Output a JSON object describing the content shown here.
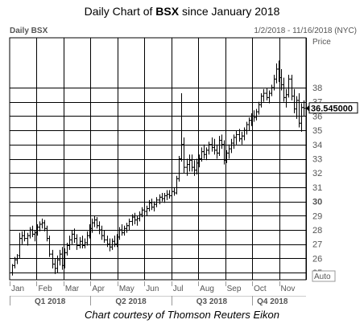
{
  "title": {
    "prefix": "Daily Chart of ",
    "ticker": "BSX",
    "suffix": " since January 2018"
  },
  "caption": "Chart courtesy of Thomson Reuters Eikon",
  "chart_data": {
    "type": "ohlc",
    "panel_label": "Daily BSX",
    "date_range": "1/2/2018 - 11/16/2018 (NYC)",
    "ylabel": "Price",
    "auto_label": "Auto",
    "ylim": [
      24.5,
      41.5
    ],
    "y_ticks": [
      25,
      26,
      27,
      28,
      29,
      30,
      31,
      32,
      33,
      34,
      35,
      36,
      37,
      38
    ],
    "bold_y_ticks": [
      30
    ],
    "last_price": "36.545000",
    "last_price_value": 36.545,
    "month_labels": [
      "Jan",
      "Feb",
      "Mar",
      "Apr",
      "May",
      "Jun",
      "Jul",
      "Aug",
      "Sep",
      "Oct",
      "Nov"
    ],
    "quarter_labels": [
      "Q1 2018",
      "Q2 2018",
      "Q3 2018",
      "Q4 2018"
    ],
    "colors": {
      "bars": "#000000",
      "grid": "#000000",
      "label": "#555555",
      "price_label_bg": "#ffffff"
    },
    "bars": [
      {
        "o": 25.0,
        "h": 25.6,
        "l": 24.8,
        "c": 25.5
      },
      {
        "o": 25.5,
        "h": 26.1,
        "l": 25.3,
        "c": 25.9
      },
      {
        "o": 25.9,
        "h": 26.3,
        "l": 25.6,
        "c": 26.0
      },
      {
        "o": 26.2,
        "h": 27.8,
        "l": 26.0,
        "c": 27.4
      },
      {
        "o": 27.4,
        "h": 27.9,
        "l": 27.0,
        "c": 27.6
      },
      {
        "o": 27.6,
        "h": 28.0,
        "l": 27.2,
        "c": 27.4
      },
      {
        "o": 27.4,
        "h": 27.8,
        "l": 26.9,
        "c": 27.6
      },
      {
        "o": 27.6,
        "h": 28.2,
        "l": 27.4,
        "c": 28.0
      },
      {
        "o": 28.0,
        "h": 28.3,
        "l": 27.5,
        "c": 27.7
      },
      {
        "o": 27.7,
        "h": 28.0,
        "l": 27.2,
        "c": 27.8
      },
      {
        "o": 27.8,
        "h": 28.4,
        "l": 27.6,
        "c": 28.2
      },
      {
        "o": 28.2,
        "h": 28.6,
        "l": 27.9,
        "c": 28.4
      },
      {
        "o": 28.4,
        "h": 28.8,
        "l": 28.1,
        "c": 28.5
      },
      {
        "o": 28.5,
        "h": 28.7,
        "l": 27.9,
        "c": 28.1
      },
      {
        "o": 28.1,
        "h": 28.3,
        "l": 27.2,
        "c": 27.4
      },
      {
        "o": 27.4,
        "h": 27.6,
        "l": 26.1,
        "c": 26.3
      },
      {
        "o": 26.3,
        "h": 26.6,
        "l": 25.3,
        "c": 25.6
      },
      {
        "o": 25.6,
        "h": 26.0,
        "l": 24.9,
        "c": 25.3
      },
      {
        "o": 25.3,
        "h": 26.2,
        "l": 25.0,
        "c": 25.9
      },
      {
        "o": 25.9,
        "h": 26.6,
        "l": 25.5,
        "c": 26.3
      },
      {
        "o": 26.3,
        "h": 26.8,
        "l": 25.2,
        "c": 25.5
      },
      {
        "o": 25.5,
        "h": 26.7,
        "l": 25.3,
        "c": 26.4
      },
      {
        "o": 26.4,
        "h": 27.1,
        "l": 26.2,
        "c": 26.9
      },
      {
        "o": 26.9,
        "h": 27.6,
        "l": 26.6,
        "c": 27.3
      },
      {
        "o": 27.3,
        "h": 28.0,
        "l": 27.0,
        "c": 27.7
      },
      {
        "o": 27.7,
        "h": 28.1,
        "l": 27.1,
        "c": 27.4
      },
      {
        "o": 27.4,
        "h": 27.7,
        "l": 26.6,
        "c": 26.9
      },
      {
        "o": 26.9,
        "h": 27.5,
        "l": 26.7,
        "c": 27.2
      },
      {
        "o": 27.2,
        "h": 27.6,
        "l": 26.7,
        "c": 26.9
      },
      {
        "o": 26.9,
        "h": 27.4,
        "l": 26.7,
        "c": 27.1
      },
      {
        "o": 27.1,
        "h": 27.9,
        "l": 26.9,
        "c": 27.6
      },
      {
        "o": 27.6,
        "h": 28.4,
        "l": 27.4,
        "c": 28.1
      },
      {
        "o": 28.1,
        "h": 28.8,
        "l": 27.8,
        "c": 28.5
      },
      {
        "o": 28.5,
        "h": 29.0,
        "l": 28.2,
        "c": 28.7
      },
      {
        "o": 28.7,
        "h": 28.9,
        "l": 28.1,
        "c": 28.3
      },
      {
        "o": 28.3,
        "h": 28.6,
        "l": 27.7,
        "c": 28.0
      },
      {
        "o": 28.0,
        "h": 28.3,
        "l": 27.3,
        "c": 27.6
      },
      {
        "o": 27.6,
        "h": 28.0,
        "l": 27.1,
        "c": 27.3
      },
      {
        "o": 27.3,
        "h": 27.6,
        "l": 26.8,
        "c": 27.0
      },
      {
        "o": 27.0,
        "h": 27.4,
        "l": 26.5,
        "c": 26.8
      },
      {
        "o": 26.8,
        "h": 27.4,
        "l": 26.6,
        "c": 27.2
      },
      {
        "o": 27.2,
        "h": 27.6,
        "l": 26.8,
        "c": 27.0
      },
      {
        "o": 27.0,
        "h": 27.7,
        "l": 26.8,
        "c": 27.5
      },
      {
        "o": 27.5,
        "h": 28.2,
        "l": 27.3,
        "c": 28.0
      },
      {
        "o": 28.0,
        "h": 28.4,
        "l": 27.6,
        "c": 27.8
      },
      {
        "o": 27.8,
        "h": 28.3,
        "l": 27.6,
        "c": 28.1
      },
      {
        "o": 28.1,
        "h": 28.5,
        "l": 27.8,
        "c": 28.3
      },
      {
        "o": 28.3,
        "h": 28.8,
        "l": 28.0,
        "c": 28.6
      },
      {
        "o": 28.6,
        "h": 29.1,
        "l": 28.3,
        "c": 28.9
      },
      {
        "o": 28.9,
        "h": 29.2,
        "l": 28.4,
        "c": 28.7
      },
      {
        "o": 28.7,
        "h": 29.0,
        "l": 28.3,
        "c": 28.8
      },
      {
        "o": 28.8,
        "h": 29.3,
        "l": 28.6,
        "c": 29.1
      },
      {
        "o": 29.1,
        "h": 29.6,
        "l": 28.9,
        "c": 29.4
      },
      {
        "o": 29.4,
        "h": 29.8,
        "l": 29.0,
        "c": 29.3
      },
      {
        "o": 29.3,
        "h": 29.7,
        "l": 29.0,
        "c": 29.5
      },
      {
        "o": 29.5,
        "h": 30.1,
        "l": 29.3,
        "c": 29.9
      },
      {
        "o": 29.9,
        "h": 30.2,
        "l": 29.4,
        "c": 29.6
      },
      {
        "o": 29.6,
        "h": 30.0,
        "l": 29.3,
        "c": 29.8
      },
      {
        "o": 29.8,
        "h": 30.3,
        "l": 29.6,
        "c": 30.1
      },
      {
        "o": 30.1,
        "h": 30.5,
        "l": 29.8,
        "c": 30.3
      },
      {
        "o": 30.3,
        "h": 30.6,
        "l": 30.0,
        "c": 30.2
      },
      {
        "o": 30.2,
        "h": 30.6,
        "l": 29.9,
        "c": 30.4
      },
      {
        "o": 30.4,
        "h": 30.8,
        "l": 30.1,
        "c": 30.5
      },
      {
        "o": 30.5,
        "h": 30.8,
        "l": 30.2,
        "c": 30.4
      },
      {
        "o": 30.4,
        "h": 30.9,
        "l": 30.2,
        "c": 30.7
      },
      {
        "o": 30.7,
        "h": 31.0,
        "l": 30.4,
        "c": 30.6
      },
      {
        "o": 30.6,
        "h": 31.8,
        "l": 30.5,
        "c": 31.6
      },
      {
        "o": 31.6,
        "h": 33.2,
        "l": 31.4,
        "c": 33.0
      },
      {
        "o": 33.0,
        "h": 37.6,
        "l": 32.8,
        "c": 34.0
      },
      {
        "o": 34.0,
        "h": 34.5,
        "l": 32.0,
        "c": 32.4
      },
      {
        "o": 32.4,
        "h": 33.0,
        "l": 31.8,
        "c": 32.6
      },
      {
        "o": 32.6,
        "h": 33.3,
        "l": 32.1,
        "c": 32.9
      },
      {
        "o": 32.9,
        "h": 33.3,
        "l": 32.1,
        "c": 32.4
      },
      {
        "o": 32.4,
        "h": 32.9,
        "l": 31.8,
        "c": 32.2
      },
      {
        "o": 32.2,
        "h": 33.0,
        "l": 31.9,
        "c": 32.7
      },
      {
        "o": 32.7,
        "h": 33.3,
        "l": 32.4,
        "c": 33.0
      },
      {
        "o": 33.0,
        "h": 33.8,
        "l": 32.8,
        "c": 33.5
      },
      {
        "o": 33.5,
        "h": 34.0,
        "l": 33.0,
        "c": 33.3
      },
      {
        "o": 33.3,
        "h": 33.8,
        "l": 32.9,
        "c": 33.6
      },
      {
        "o": 33.6,
        "h": 34.2,
        "l": 33.3,
        "c": 34.0
      },
      {
        "o": 34.0,
        "h": 34.5,
        "l": 33.5,
        "c": 33.8
      },
      {
        "o": 33.8,
        "h": 34.4,
        "l": 33.3,
        "c": 33.6
      },
      {
        "o": 33.6,
        "h": 34.0,
        "l": 33.0,
        "c": 33.4
      },
      {
        "o": 33.4,
        "h": 34.6,
        "l": 33.2,
        "c": 34.3
      },
      {
        "o": 34.3,
        "h": 34.7,
        "l": 33.7,
        "c": 34.0
      },
      {
        "o": 34.0,
        "h": 34.3,
        "l": 32.6,
        "c": 32.9
      },
      {
        "o": 32.9,
        "h": 33.6,
        "l": 32.7,
        "c": 33.4
      },
      {
        "o": 33.4,
        "h": 34.0,
        "l": 33.0,
        "c": 33.7
      },
      {
        "o": 33.7,
        "h": 34.4,
        "l": 33.4,
        "c": 34.1
      },
      {
        "o": 34.1,
        "h": 34.7,
        "l": 33.7,
        "c": 34.5
      },
      {
        "o": 34.5,
        "h": 35.0,
        "l": 34.0,
        "c": 34.7
      },
      {
        "o": 34.7,
        "h": 35.1,
        "l": 34.2,
        "c": 34.4
      },
      {
        "o": 34.4,
        "h": 34.9,
        "l": 34.0,
        "c": 34.6
      },
      {
        "o": 34.6,
        "h": 35.2,
        "l": 34.3,
        "c": 35.0
      },
      {
        "o": 35.0,
        "h": 35.6,
        "l": 34.7,
        "c": 35.4
      },
      {
        "o": 35.4,
        "h": 35.9,
        "l": 35.0,
        "c": 35.7
      },
      {
        "o": 35.7,
        "h": 36.2,
        "l": 35.3,
        "c": 36.0
      },
      {
        "o": 36.0,
        "h": 36.4,
        "l": 35.6,
        "c": 35.9
      },
      {
        "o": 35.9,
        "h": 36.5,
        "l": 35.7,
        "c": 36.3
      },
      {
        "o": 36.3,
        "h": 37.0,
        "l": 36.1,
        "c": 36.8
      },
      {
        "o": 36.8,
        "h": 37.6,
        "l": 36.6,
        "c": 37.4
      },
      {
        "o": 37.4,
        "h": 37.9,
        "l": 37.0,
        "c": 37.6
      },
      {
        "o": 37.6,
        "h": 38.0,
        "l": 37.1,
        "c": 37.3
      },
      {
        "o": 37.3,
        "h": 37.8,
        "l": 36.9,
        "c": 37.6
      },
      {
        "o": 37.6,
        "h": 38.2,
        "l": 37.4,
        "c": 38.0
      },
      {
        "o": 38.0,
        "h": 38.9,
        "l": 37.8,
        "c": 38.6
      },
      {
        "o": 38.6,
        "h": 39.7,
        "l": 38.3,
        "c": 39.3
      },
      {
        "o": 39.3,
        "h": 39.9,
        "l": 38.4,
        "c": 38.7
      },
      {
        "o": 38.7,
        "h": 39.3,
        "l": 37.8,
        "c": 38.2
      },
      {
        "o": 38.2,
        "h": 38.7,
        "l": 37.0,
        "c": 37.3
      },
      {
        "o": 37.3,
        "h": 37.9,
        "l": 36.6,
        "c": 37.5
      },
      {
        "o": 37.5,
        "h": 38.9,
        "l": 37.3,
        "c": 38.6
      },
      {
        "o": 38.6,
        "h": 38.9,
        "l": 37.1,
        "c": 37.4
      },
      {
        "o": 37.4,
        "h": 37.9,
        "l": 36.2,
        "c": 36.5
      },
      {
        "o": 36.5,
        "h": 37.4,
        "l": 35.8,
        "c": 37.1
      },
      {
        "o": 37.1,
        "h": 37.6,
        "l": 35.2,
        "c": 35.5
      },
      {
        "o": 35.5,
        "h": 36.9,
        "l": 34.9,
        "c": 36.6
      },
      {
        "o": 36.6,
        "h": 37.1,
        "l": 36.0,
        "c": 36.545
      }
    ]
  }
}
